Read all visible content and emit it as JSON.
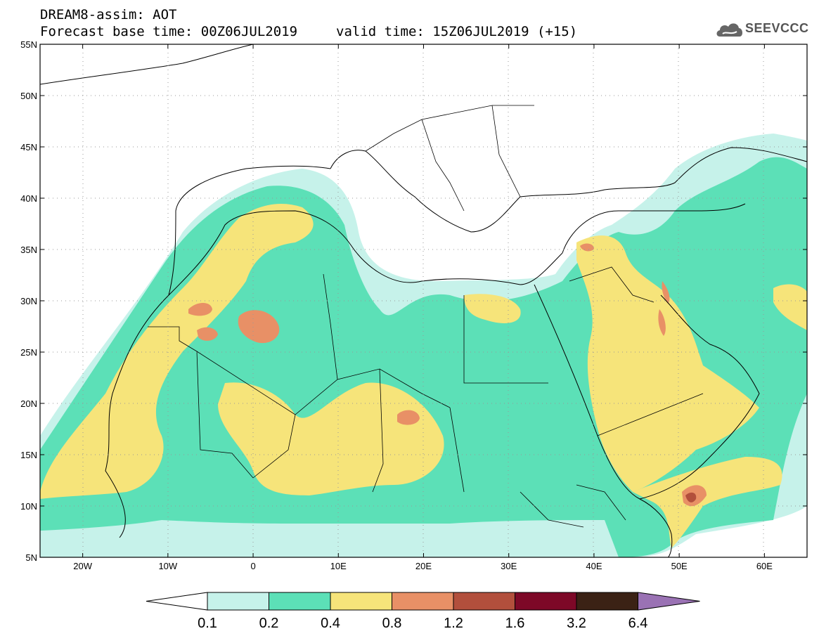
{
  "header": {
    "title": "DREAM8-assim: AOT",
    "base_time": "Forecast base time: 00Z06JUL2019",
    "valid_time": "valid time: 15Z06JUL2019 (+15)",
    "logo_text": "SEEVCCC"
  },
  "map": {
    "lat_labels": [
      "55N",
      "50N",
      "45N",
      "40N",
      "35N",
      "30N",
      "25N",
      "20N",
      "15N",
      "10N",
      "5N"
    ],
    "lon_labels": [
      "20W",
      "10W",
      "0",
      "10E",
      "20E",
      "30E",
      "40E",
      "50E",
      "60E"
    ],
    "lat_range": [
      5,
      55
    ],
    "lon_range": [
      -25,
      65
    ],
    "grid": "dotted"
  },
  "legend": {
    "levels": [
      "0.1",
      "0.2",
      "0.4",
      "0.8",
      "1.2",
      "1.6",
      "3.2",
      "6.4"
    ],
    "colors": [
      "#ffffff",
      "#c6f2ea",
      "#5ce0b7",
      "#f6e47a",
      "#e89066",
      "#b24f3c",
      "#7d0827",
      "#3b2215",
      "#9a72b4"
    ]
  },
  "colors": {
    "c01": "#c6f2ea",
    "c02": "#5ce0b7",
    "c04": "#f6e47a",
    "c08": "#e89066",
    "c12": "#b24f3c"
  }
}
